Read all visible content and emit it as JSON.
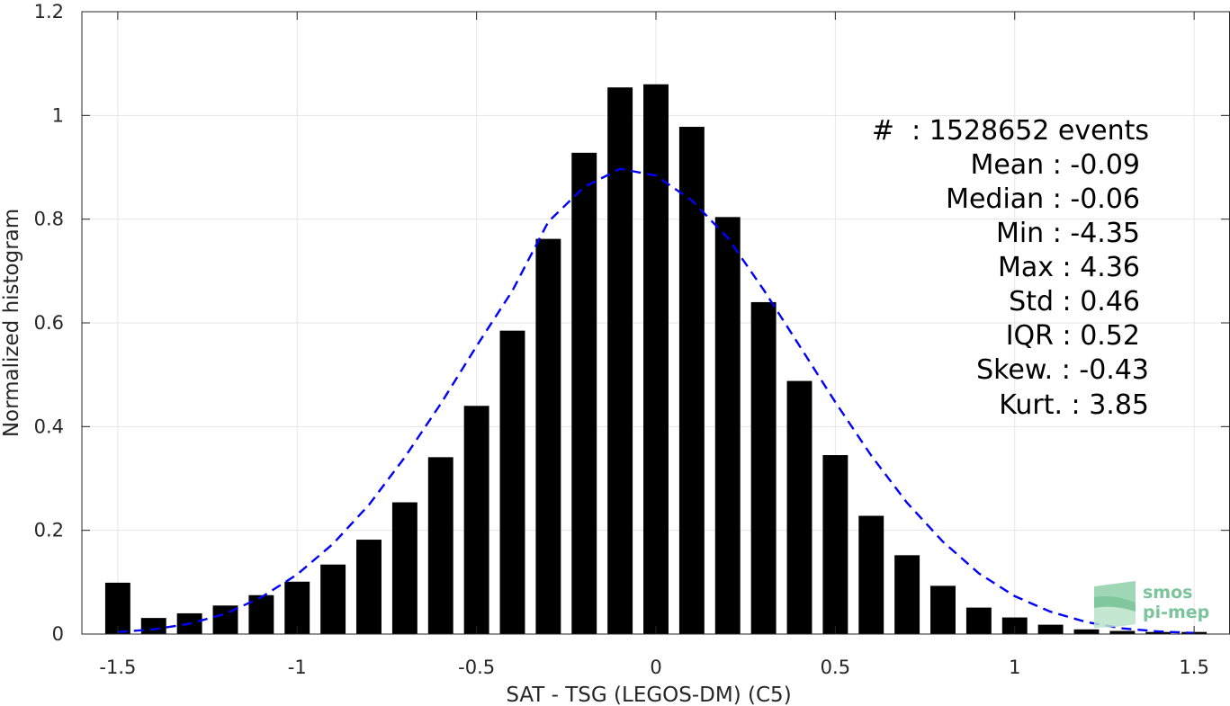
{
  "chart_data": {
    "type": "bar",
    "xlabel": "SAT - TSG (LEGOS-DM) (C5)",
    "ylabel": "Normalized histogram",
    "xlim": [
      -1.6,
      1.6
    ],
    "ylim": [
      0,
      1.2
    ],
    "grid": true,
    "x_ticks": [
      -1.5,
      -1,
      -0.5,
      0,
      0.5,
      1,
      1.5
    ],
    "x_tick_labels": [
      "-1.5",
      "-1",
      "-0.5",
      "0",
      "0.5",
      "1",
      "1.5"
    ],
    "y_ticks": [
      0,
      0.2,
      0.4,
      0.6,
      0.8,
      1,
      1.2
    ],
    "y_tick_labels": [
      "0",
      "0.2",
      "0.4",
      "0.6",
      "0.8",
      "1",
      "1.2"
    ],
    "bar_width": 0.07,
    "x": [
      -1.5,
      -1.4,
      -1.3,
      -1.2,
      -1.1,
      -1.0,
      -0.9,
      -0.8,
      -0.7,
      -0.6,
      -0.5,
      -0.4,
      -0.3,
      -0.2,
      -0.1,
      0.0,
      0.1,
      0.2,
      0.3,
      0.4,
      0.5,
      0.6,
      0.7,
      0.8,
      0.9,
      1.0,
      1.1,
      1.2,
      1.3,
      1.4,
      1.5
    ],
    "values": [
      0.099,
      0.031,
      0.04,
      0.055,
      0.075,
      0.101,
      0.134,
      0.182,
      0.254,
      0.341,
      0.44,
      0.585,
      0.762,
      0.928,
      1.054,
      1.06,
      0.978,
      0.804,
      0.64,
      0.488,
      0.345,
      0.228,
      0.152,
      0.093,
      0.051,
      0.032,
      0.018,
      0.009,
      0.006,
      0.004,
      0.004
    ],
    "fit_curve": {
      "style": "dashed",
      "color": "#0000ff",
      "x": [
        -1.5,
        -1.4,
        -1.3,
        -1.2,
        -1.1,
        -1.0,
        -0.9,
        -0.8,
        -0.7,
        -0.6,
        -0.5,
        -0.4,
        -0.3,
        -0.2,
        -0.1,
        0.0,
        0.1,
        0.2,
        0.3,
        0.4,
        0.5,
        0.6,
        0.7,
        0.8,
        0.9,
        1.0,
        1.1,
        1.2,
        1.3,
        1.4,
        1.5
      ],
      "y": [
        0.004,
        0.009,
        0.02,
        0.039,
        0.071,
        0.115,
        0.174,
        0.249,
        0.341,
        0.444,
        0.555,
        0.662,
        0.795,
        0.862,
        0.897,
        0.884,
        0.836,
        0.764,
        0.664,
        0.556,
        0.447,
        0.344,
        0.253,
        0.178,
        0.117,
        0.073,
        0.043,
        0.023,
        0.011,
        0.005,
        0.002
      ]
    }
  },
  "stats": {
    "events": "#  : 1528652 events",
    "mean": "Mean : -0.09",
    "median": "Median : -0.06",
    "min": "Min : -4.35",
    "max": "Max : 4.36",
    "std": "Std : 0.46",
    "iqr": "IQR : 0.52",
    "skew": "Skew. : -0.43",
    "kurt": "Kurt. : 3.85"
  },
  "logo": {
    "line1": "smos",
    "line2": "pi-mep"
  },
  "colors": {
    "bars": "#000000",
    "fit_curve": "#0000ff",
    "grid": "#e6e6e6",
    "axes": "#262626",
    "logo": "#7cc49a"
  }
}
